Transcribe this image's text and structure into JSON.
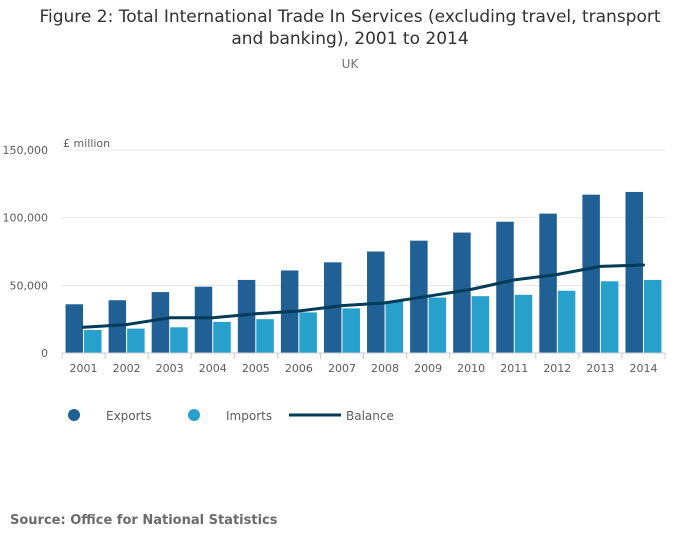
{
  "title_line1": "Figure 2: Total International Trade In Services (excluding travel, transport",
  "title_line2": "and banking), 2001 to 2014",
  "subtitle": "UK",
  "source": "Source: Office for National Statistics",
  "colors": {
    "exports": "#206095",
    "imports": "#27a0cc",
    "balance": "#003c57",
    "grid": "#e6e6e6"
  },
  "chart_data": {
    "type": "bar",
    "title": "Figure 2: Total International Trade In Services (excluding travel, transport and banking), 2001 to 2014",
    "subtitle": "UK",
    "ylabel": "£ million",
    "ylim": [
      0,
      150000
    ],
    "yticks": [
      0,
      50000,
      100000,
      150000
    ],
    "ytick_labels": [
      "0",
      "50,000",
      "100,000",
      "150,000"
    ],
    "grid": true,
    "legend_position": "bottom-left",
    "categories": [
      "2001",
      "2002",
      "2003",
      "2004",
      "2005",
      "2006",
      "2007",
      "2008",
      "2009",
      "2010",
      "2011",
      "2012",
      "2013",
      "2014"
    ],
    "series": [
      {
        "name": "Exports",
        "type": "bar",
        "values": [
          36000,
          39000,
          45000,
          49000,
          54000,
          61000,
          67000,
          75000,
          83000,
          89000,
          97000,
          103000,
          117000,
          119000
        ]
      },
      {
        "name": "Imports",
        "type": "bar",
        "values": [
          17000,
          18000,
          19000,
          23000,
          25000,
          30000,
          33000,
          38000,
          41000,
          42000,
          43000,
          46000,
          53000,
          54000
        ]
      },
      {
        "name": "Balance",
        "type": "line",
        "values": [
          19000,
          21000,
          26000,
          26000,
          29000,
          31000,
          35000,
          37000,
          42000,
          47000,
          54000,
          58000,
          64000,
          65000
        ]
      }
    ]
  }
}
